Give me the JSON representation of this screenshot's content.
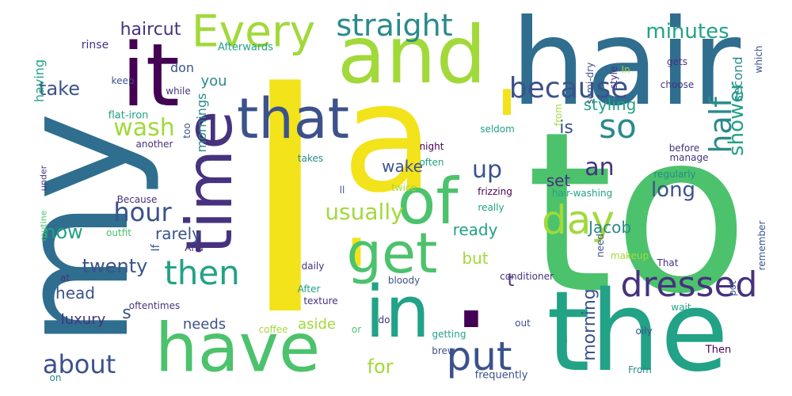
{
  "palette": {
    "yellow": "#f2e31a",
    "lime": "#a2d93a",
    "green": "#4cc26c",
    "teal": "#22a286",
    "cyan": "#2a8a8c",
    "blue": "#2f6e8e",
    "slate": "#3b528b",
    "indigo": "#46327e",
    "purple": "#440154"
  },
  "words": [
    {
      "text": "I",
      "color": "yellow"
    },
    {
      "text": "to",
      "color": "green"
    },
    {
      "text": "hair",
      "color": "blue"
    },
    {
      "text": "my",
      "color": "blue"
    },
    {
      "text": "the",
      "color": "teal"
    },
    {
      "text": "a",
      "color": "yellow"
    },
    {
      "text": "'",
      "color": "yellow"
    },
    {
      "text": "'",
      "color": "yellow"
    },
    {
      "text": ".",
      "color": "purple"
    },
    {
      "text": "and",
      "color": "lime"
    },
    {
      "text": "it",
      "color": "purple"
    },
    {
      "text": "have",
      "color": "green"
    },
    {
      "text": "in",
      "color": "teal"
    },
    {
      "text": "of",
      "color": "green"
    },
    {
      "text": "time",
      "color": "indigo"
    },
    {
      "text": "that",
      "color": "slate"
    },
    {
      "text": "get",
      "color": "green"
    },
    {
      "text": "Every",
      "color": "lime"
    },
    {
      "text": "day",
      "color": "lime"
    },
    {
      "text": "dressed",
      "color": "indigo"
    },
    {
      "text": "put",
      "color": "slate"
    },
    {
      "text": "so",
      "color": "cyan"
    },
    {
      "text": "then",
      "color": "teal"
    },
    {
      "text": "straight",
      "color": "cyan"
    },
    {
      "text": "because",
      "color": "slate"
    },
    {
      "text": "half",
      "color": "cyan"
    },
    {
      "text": "hour",
      "color": "slate"
    },
    {
      "text": "wash",
      "color": "lime"
    },
    {
      "text": "about",
      "color": "slate"
    },
    {
      "text": "an",
      "color": "indigo"
    },
    {
      "text": "up",
      "color": "slate"
    },
    {
      "text": "usually",
      "color": "lime"
    },
    {
      "text": "long",
      "color": "slate"
    },
    {
      "text": "minutes",
      "color": "teal"
    },
    {
      "text": "shower",
      "color": "teal"
    },
    {
      "text": "twenty",
      "color": "slate"
    },
    {
      "text": "haircut",
      "color": "indigo"
    },
    {
      "text": "take",
      "color": "slate"
    },
    {
      "text": "now",
      "color": "teal"
    },
    {
      "text": "is",
      "color": "slate"
    },
    {
      "text": "for",
      "color": "lime"
    },
    {
      "text": "morning",
      "color": "slate"
    },
    {
      "text": "styling",
      "color": "teal"
    },
    {
      "text": "head",
      "color": "slate"
    },
    {
      "text": "wake",
      "color": "slate"
    },
    {
      "text": "rarely",
      "color": "slate"
    },
    {
      "text": "Jacob",
      "color": "cyan"
    },
    {
      "text": "ready",
      "color": "teal"
    },
    {
      "text": "but",
      "color": "lime"
    },
    {
      "text": "set",
      "color": "indigo"
    },
    {
      "text": "luxury",
      "color": "indigo"
    },
    {
      "text": "needs",
      "color": "slate"
    },
    {
      "text": "aside",
      "color": "lime"
    },
    {
      "text": "s",
      "color": "slate"
    },
    {
      "text": "t",
      "color": "indigo"
    },
    {
      "text": "you",
      "color": "cyan"
    },
    {
      "text": "mornings",
      "color": "cyan"
    },
    {
      "text": "don",
      "color": "slate"
    },
    {
      "text": "having",
      "color": "teal"
    },
    {
      "text": "second",
      "color": "cyan"
    },
    {
      "text": "If",
      "color": "slate"
    },
    {
      "text": "routine",
      "color": "green"
    },
    {
      "text": "rinse",
      "color": "indigo"
    },
    {
      "text": "Afterwards",
      "color": "teal"
    },
    {
      "text": "keep",
      "color": "slate"
    },
    {
      "text": "while",
      "color": "indigo"
    },
    {
      "text": "flat-iron",
      "color": "teal"
    },
    {
      "text": "too",
      "color": "slate"
    },
    {
      "text": "another",
      "color": "indigo"
    },
    {
      "text": "under",
      "color": "indigo"
    },
    {
      "text": "Because",
      "color": "indigo"
    },
    {
      "text": "outfit",
      "color": "green"
    },
    {
      "text": "And",
      "color": "indigo"
    },
    {
      "text": "at",
      "color": "indigo"
    },
    {
      "text": "oftentimes",
      "color": "indigo"
    },
    {
      "text": "coffee",
      "color": "lime"
    },
    {
      "text": "or",
      "color": "green"
    },
    {
      "text": "do",
      "color": "indigo"
    },
    {
      "text": "getting",
      "color": "teal"
    },
    {
      "text": "brew",
      "color": "slate"
    },
    {
      "text": "on",
      "color": "cyan"
    },
    {
      "text": "frequently",
      "color": "slate"
    },
    {
      "text": "out",
      "color": "slate"
    },
    {
      "text": "all",
      "color": "teal"
    },
    {
      "text": "From",
      "color": "cyan"
    },
    {
      "text": "Then",
      "color": "purple"
    },
    {
      "text": "wait",
      "color": "teal"
    },
    {
      "text": "oily",
      "color": "slate"
    },
    {
      "text": "takes",
      "color": "cyan"
    },
    {
      "text": "ll",
      "color": "slate"
    },
    {
      "text": "twice",
      "color": "lime"
    },
    {
      "text": "night",
      "color": "purple"
    },
    {
      "text": "often",
      "color": "teal"
    },
    {
      "text": "seldom",
      "color": "teal"
    },
    {
      "text": "frizzing",
      "color": "purple"
    },
    {
      "text": "really",
      "color": "teal"
    },
    {
      "text": "hair-washing",
      "color": "teal"
    },
    {
      "text": "daily",
      "color": "indigo"
    },
    {
      "text": "After",
      "color": "teal"
    },
    {
      "text": "texture",
      "color": "indigo"
    },
    {
      "text": "bloody",
      "color": "slate"
    },
    {
      "text": "conditioner",
      "color": "indigo"
    },
    {
      "text": "semi-dry",
      "color": "slate"
    },
    {
      "text": "In",
      "color": "lime"
    },
    {
      "text": "from",
      "color": "lime"
    },
    {
      "text": "style",
      "color": "indigo"
    },
    {
      "text": "gets",
      "color": "indigo"
    },
    {
      "text": "which",
      "color": "slate"
    },
    {
      "text": "choose",
      "color": "indigo"
    },
    {
      "text": "manage",
      "color": "indigo"
    },
    {
      "text": "before",
      "color": "indigo"
    },
    {
      "text": "regularly",
      "color": "cyan"
    },
    {
      "text": "need",
      "color": "slate"
    },
    {
      "text": "makeup",
      "color": "lime"
    },
    {
      "text": "pot",
      "color": "slate"
    },
    {
      "text": "remember",
      "color": "slate"
    },
    {
      "text": "That",
      "color": "indigo"
    }
  ]
}
